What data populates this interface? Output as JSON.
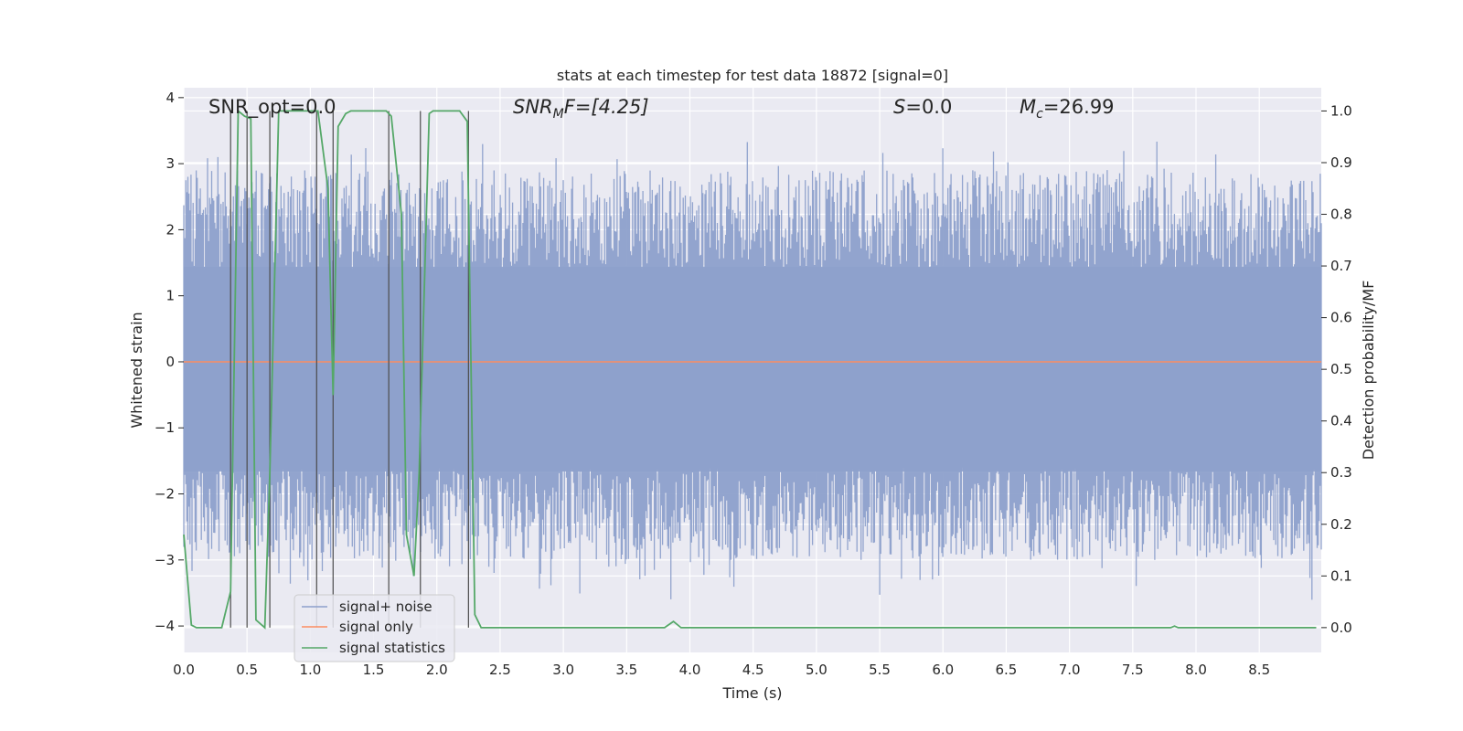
{
  "chart_data": {
    "type": "line",
    "title": "stats at each timestep for test data 18872 [signal=0]",
    "xlabel": "Time (s)",
    "ylabel": "Whitened strain",
    "ylabel_right": "Detection probability/MF",
    "xlim": [
      0.0,
      8.99
    ],
    "ylim": [
      -4.4,
      4.15
    ],
    "ylim_right": [
      -0.048,
      1.045
    ],
    "xticks": [
      "0.0",
      "0.5",
      "1.0",
      "1.5",
      "2.0",
      "2.5",
      "3.0",
      "3.5",
      "4.0",
      "4.5",
      "5.0",
      "5.5",
      "6.0",
      "6.5",
      "7.0",
      "7.5",
      "8.0",
      "8.5"
    ],
    "yticks": [
      "−4",
      "−3",
      "−2",
      "−1",
      "0",
      "1",
      "2",
      "3",
      "4"
    ],
    "yticks_right": [
      "0.0",
      "0.1",
      "0.2",
      "0.3",
      "0.4",
      "0.5",
      "0.6",
      "0.7",
      "0.8",
      "0.9",
      "1.0"
    ],
    "grid": true,
    "legend_position": "lower-left",
    "annotations": {
      "snr_opt": "SNR_opt=0.0",
      "snr_mf_main": "SNR",
      "snr_mf_sub": "M",
      "snr_mf_rest": "F=[4.25]",
      "s_main": "S",
      "s_rest": "=0.0",
      "mc_main": "M",
      "mc_sub": "c",
      "mc_rest": "=26.99"
    },
    "series": [
      {
        "name": "signal+ noise",
        "color": "#8da0cb",
        "kind": "noise-band",
        "envelope": {
          "upper_typical": 2.0,
          "lower_typical": -2.0,
          "peaks_up": [
            [
              0.25,
              2.8
            ],
            [
              0.55,
              3.2
            ],
            [
              0.95,
              3.1
            ],
            [
              1.28,
              3.6
            ],
            [
              1.55,
              3.0
            ],
            [
              2.05,
              3.1
            ],
            [
              2.45,
              3.3
            ],
            [
              2.93,
              3.6
            ],
            [
              3.45,
              3.1
            ],
            [
              3.7,
              3.2
            ],
            [
              4.1,
              3.3
            ],
            [
              4.55,
              3.1
            ],
            [
              5.0,
              3.2
            ],
            [
              5.3,
              3.4
            ],
            [
              5.75,
              3.2
            ],
            [
              6.0,
              3.6
            ],
            [
              6.4,
              3.4
            ],
            [
              6.9,
              3.3
            ],
            [
              7.3,
              3.4
            ],
            [
              7.75,
              3.6
            ],
            [
              8.2,
              3.4
            ],
            [
              8.7,
              3.3
            ]
          ],
          "peaks_down": [
            [
              0.22,
              -3.0
            ],
            [
              0.75,
              -3.8
            ],
            [
              0.95,
              -3.7
            ],
            [
              1.35,
              -3.4
            ],
            [
              2.1,
              -3.2
            ],
            [
              2.9,
              -3.8
            ],
            [
              3.85,
              -3.8
            ],
            [
              4.15,
              -3.6
            ],
            [
              4.8,
              -3.3
            ],
            [
              5.5,
              -3.6
            ],
            [
              6.0,
              -3.2
            ],
            [
              6.5,
              -3.8
            ],
            [
              7.35,
              -3.3
            ],
            [
              7.85,
              -3.2
            ],
            [
              8.45,
              -3.1
            ],
            [
              8.9,
              -3.3
            ]
          ]
        }
      },
      {
        "name": "signal only",
        "color": "#fc8d62",
        "x": [
          0.0,
          8.99
        ],
        "y": [
          0.0,
          0.0
        ]
      },
      {
        "name": "signal statistics",
        "color": "#55a868",
        "axis": "right",
        "x": [
          0.0,
          0.06,
          0.1,
          0.3,
          0.37,
          0.43,
          0.48,
          0.53,
          0.57,
          0.64,
          0.68,
          0.75,
          1.0,
          1.06,
          1.14,
          1.18,
          1.22,
          1.28,
          1.32,
          1.6,
          1.64,
          1.72,
          1.76,
          1.82,
          1.86,
          1.94,
          1.97,
          2.18,
          2.24,
          2.3,
          2.35,
          2.4,
          3.8,
          3.87,
          3.93,
          7.8,
          7.83,
          7.86,
          8.95
        ],
        "y": [
          0.18,
          0.005,
          0.0,
          0.0,
          0.07,
          1.0,
          0.99,
          0.985,
          0.015,
          0.0,
          0.3,
          1.0,
          1.0,
          1.0,
          0.85,
          0.45,
          0.97,
          0.995,
          1.0,
          1.0,
          0.99,
          0.8,
          0.18,
          0.1,
          0.3,
          0.995,
          1.0,
          1.0,
          0.98,
          0.025,
          0.0,
          0.0,
          0.0,
          0.012,
          0.0,
          0.0,
          0.003,
          0.0,
          0.0
        ]
      }
    ],
    "event_lines_x": [
      0.37,
      0.5,
      0.68,
      1.05,
      1.18,
      1.62,
      1.87,
      2.25
    ]
  }
}
